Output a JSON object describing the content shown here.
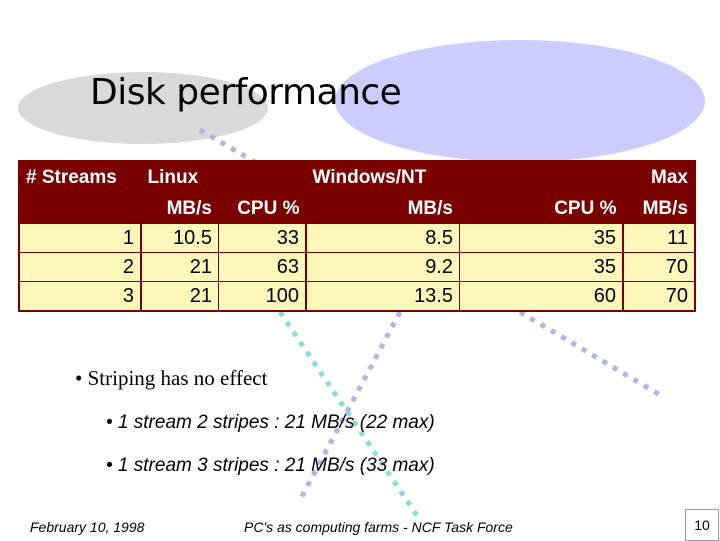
{
  "slide": {
    "title": "Disk performance",
    "colors": {
      "header_bg": "#7a0000",
      "table_bg": "#fdf7ba",
      "accent_blue": "#ccccff",
      "accent_gray": "#d9d9d9"
    }
  },
  "table": {
    "header_top": [
      "# Streams",
      "Linux",
      "",
      "Windows/NT",
      "",
      "Max"
    ],
    "header_bottom": [
      "",
      "MB/s",
      "CPU %",
      "MB/s",
      "CPU %",
      "MB/s"
    ],
    "rows": [
      [
        "1",
        "10.5",
        "33",
        "8.5",
        "35",
        "11"
      ],
      [
        "2",
        "21",
        "63",
        "9.2",
        "35",
        "70"
      ],
      [
        "3",
        "21",
        "100",
        "13.5",
        "60",
        "70"
      ]
    ]
  },
  "bullets": {
    "main": "• Striping has no effect",
    "sub": [
      "• 1 stream 2 stripes : 21 MB/s (22 max)",
      "• 1 stream 3 stripes : 21 MB/s (33 max)"
    ]
  },
  "footer": {
    "date": "February 10, 1998",
    "center": "PC's as computing farms - NCF Task Force",
    "page_number": "10"
  }
}
